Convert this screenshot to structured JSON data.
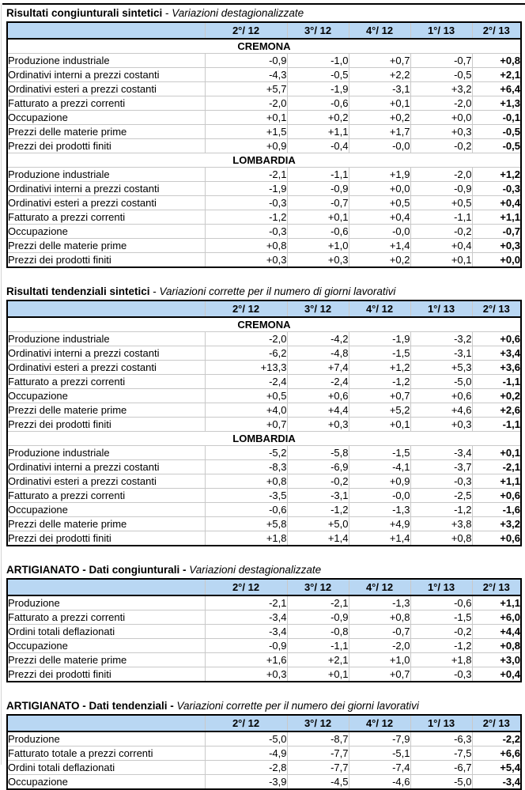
{
  "page": {
    "background": "#ffffff",
    "header_fill": "#b9d7f3",
    "border_dark": "#000000",
    "border_light": "#c9c9c9"
  },
  "tables": [
    {
      "title_bold": "Risultati congiunturali sintetici",
      "title_sep": " - ",
      "title_italic": "Variazioni destagionalizzate",
      "columns": [
        "2°/ 12",
        "3°/ 12",
        "4°/ 12",
        "1°/ 13",
        "2°/ 13"
      ],
      "sections": [
        {
          "name": "CREMONA",
          "rows": [
            {
              "label": "Produzione industriale",
              "values": [
                "-0,9",
                "-1,0",
                "+0,7",
                "-0,7",
                "+0,8"
              ]
            },
            {
              "label": "Ordinativi interni a prezzi costanti",
              "values": [
                "-4,3",
                "-0,5",
                "+2,2",
                "-0,5",
                "+2,1"
              ]
            },
            {
              "label": "Ordinativi esteri a prezzi costanti",
              "values": [
                "+5,7",
                "-1,9",
                "-3,1",
                "+3,2",
                "+6,4"
              ]
            },
            {
              "label": "Fatturato a prezzi correnti",
              "values": [
                "-2,0",
                "-0,6",
                "+0,1",
                "-2,0",
                "+1,3"
              ]
            },
            {
              "label": "Occupazione",
              "values": [
                "+0,1",
                "+0,2",
                "+0,2",
                "+0,0",
                "-0,1"
              ]
            },
            {
              "label": "Prezzi delle materie prime",
              "values": [
                "+1,5",
                "+1,1",
                "+1,7",
                "+0,3",
                "-0,5"
              ]
            },
            {
              "label": "Prezzi dei prodotti finiti",
              "values": [
                "+0,9",
                "-0,4",
                "-0,0",
                "-0,2",
                "-0,5"
              ]
            }
          ]
        },
        {
          "name": "LOMBARDIA",
          "rows": [
            {
              "label": "Produzione industriale",
              "values": [
                "-2,1",
                "-1,1",
                "+1,9",
                "-2,0",
                "+1,2"
              ]
            },
            {
              "label": "Ordinativi interni a prezzi costanti",
              "values": [
                "-1,9",
                "-0,9",
                "+0,0",
                "-0,9",
                "-0,3"
              ]
            },
            {
              "label": "Ordinativi esteri a prezzi costanti",
              "values": [
                "-0,3",
                "-0,7",
                "+0,5",
                "+0,5",
                "+0,4"
              ]
            },
            {
              "label": "Fatturato a prezzi correnti",
              "values": [
                "-1,2",
                "+0,1",
                "+0,4",
                "-1,1",
                "+1,1"
              ]
            },
            {
              "label": "Occupazione",
              "values": [
                "-0,3",
                "-0,6",
                "-0,0",
                "-0,2",
                "-0,7"
              ]
            },
            {
              "label": "Prezzi delle materie prime",
              "values": [
                "+0,8",
                "+1,0",
                "+1,4",
                "+0,4",
                "+0,3"
              ]
            },
            {
              "label": "Prezzi dei prodotti finiti",
              "values": [
                "+0,3",
                "+0,3",
                "+0,2",
                "+0,1",
                "+0,0"
              ]
            }
          ]
        }
      ]
    },
    {
      "title_bold": "Risultati tendenziali sintetici",
      "title_sep": " - ",
      "title_italic": "Variazioni corrette per il numero di giorni lavorativi",
      "columns": [
        "2°/ 12",
        "3°/ 12",
        "4°/ 12",
        "1°/ 13",
        "2°/ 13"
      ],
      "sections": [
        {
          "name": "CREMONA",
          "rows": [
            {
              "label": "Produzione industriale",
              "values": [
                "-2,0",
                "-4,2",
                "-1,9",
                "-3,2",
                "+0,6"
              ]
            },
            {
              "label": "Ordinativi interni a prezzi costanti",
              "values": [
                "-6,2",
                "-4,8",
                "-1,5",
                "-3,1",
                "+3,4"
              ]
            },
            {
              "label": "Ordinativi esteri a prezzi costanti",
              "values": [
                "+13,3",
                "+7,4",
                "+1,2",
                "+5,3",
                "+3,6"
              ]
            },
            {
              "label": "Fatturato a prezzi correnti",
              "values": [
                "-2,4",
                "-2,4",
                "-1,2",
                "-5,0",
                "-1,1"
              ]
            },
            {
              "label": "Occupazione",
              "values": [
                "+0,5",
                "+0,6",
                "+0,7",
                "+0,6",
                "+0,2"
              ]
            },
            {
              "label": "Prezzi delle materie prime",
              "values": [
                "+4,0",
                "+4,4",
                "+5,2",
                "+4,6",
                "+2,6"
              ]
            },
            {
              "label": "Prezzi dei prodotti finiti",
              "values": [
                "+0,7",
                "+0,3",
                "+0,1",
                "+0,3",
                "-1,1"
              ]
            }
          ]
        },
        {
          "name": "LOMBARDIA",
          "rows": [
            {
              "label": "Produzione industriale",
              "values": [
                "-5,2",
                "-5,8",
                "-1,5",
                "-3,4",
                "+0,1"
              ]
            },
            {
              "label": "Ordinativi interni a prezzi costanti",
              "values": [
                "-8,3",
                "-6,9",
                "-4,1",
                "-3,7",
                "-2,1"
              ]
            },
            {
              "label": "Ordinativi esteri a prezzi costanti",
              "values": [
                "+0,8",
                "-0,2",
                "+0,9",
                "-0,3",
                "+1,1"
              ]
            },
            {
              "label": "Fatturato a prezzi correnti",
              "values": [
                "-3,5",
                "-3,1",
                "-0,0",
                "-2,5",
                "+0,6"
              ]
            },
            {
              "label": "Occupazione",
              "values": [
                "-0,6",
                "-1,2",
                "-1,3",
                "-1,2",
                "-1,6"
              ]
            },
            {
              "label": "Prezzi delle materie prime",
              "values": [
                "+5,8",
                "+5,0",
                "+4,9",
                "+3,8",
                "+3,2"
              ]
            },
            {
              "label": "Prezzi dei prodotti finiti",
              "values": [
                "+1,8",
                "+1,4",
                "+1,4",
                "+0,8",
                "+0,6"
              ]
            }
          ]
        }
      ]
    },
    {
      "title_bold": "ARTIGIANATO - Dati congiunturali -",
      "title_sep": " ",
      "title_italic": "Variazioni destagionalizzate",
      "columns": [
        "2°/ 12",
        "3°/ 12",
        "4°/ 12",
        "1°/ 13",
        "2°/ 13"
      ],
      "sections": [
        {
          "name": "",
          "rows": [
            {
              "label": "Produzione",
              "values": [
                "-2,1",
                "-2,1",
                "-1,3",
                "-0,6",
                "+1,1"
              ]
            },
            {
              "label": "Fatturato a prezzi correnti",
              "values": [
                "-3,4",
                "-0,9",
                "+0,8",
                "-1,5",
                "+6,0"
              ]
            },
            {
              "label": "Ordini totali deflazionati",
              "values": [
                "-3,4",
                "-0,8",
                "-0,7",
                "-0,2",
                "+4,4"
              ]
            },
            {
              "label": "Occupazione",
              "values": [
                "-0,9",
                "-1,1",
                "-2,0",
                "-1,2",
                "+0,8"
              ]
            },
            {
              "label": "Prezzi delle materie prime",
              "values": [
                "+1,6",
                "+2,1",
                "+1,0",
                "+1,8",
                "+3,0"
              ]
            },
            {
              "label": "Prezzi dei prodotti finiti",
              "values": [
                "+0,3",
                "+0,1",
                "+0,7",
                "-0,3",
                "+0,4"
              ]
            }
          ]
        }
      ]
    },
    {
      "title_bold": "ARTIGIANATO - Dati tendenziali -",
      "title_sep": " ",
      "title_italic": "Variazioni corrette per il numero dei giorni lavorativi",
      "columns": [
        "2°/ 12",
        "3°/ 12",
        "4°/ 12",
        "1°/ 13",
        "2°/ 13"
      ],
      "sections": [
        {
          "name": "",
          "rows": [
            {
              "label": "Produzione",
              "values": [
                "-5,0",
                "-8,7",
                "-7,9",
                "-6,3",
                "-2,2"
              ]
            },
            {
              "label": "Fatturato totale a prezzi correnti",
              "values": [
                "-4,9",
                "-7,7",
                "-5,1",
                "-7,5",
                "+6,6"
              ]
            },
            {
              "label": "Ordini totali deflazionati",
              "values": [
                "-2,8",
                "-7,7",
                "-7,4",
                "-6,7",
                "+5,4"
              ]
            },
            {
              "label": "Occupazione",
              "values": [
                "-3,9",
                "-4,5",
                "-4,6",
                "-5,0",
                "-3,4"
              ]
            }
          ]
        }
      ]
    }
  ]
}
